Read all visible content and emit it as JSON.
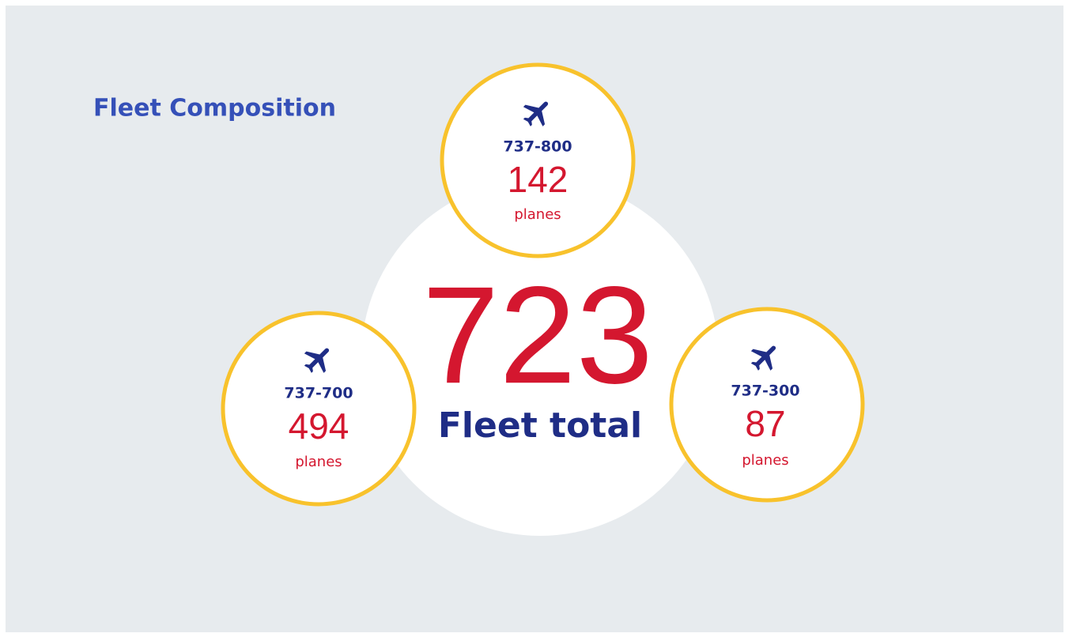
{
  "title": "Fleet Composition",
  "total": {
    "value": "723",
    "label": "Fleet total"
  },
  "models": [
    {
      "name": "737-800",
      "count": "142",
      "unit": "planes"
    },
    {
      "name": "737-700",
      "count": "494",
      "unit": "planes"
    },
    {
      "name": "737-300",
      "count": "87",
      "unit": "planes"
    }
  ]
}
